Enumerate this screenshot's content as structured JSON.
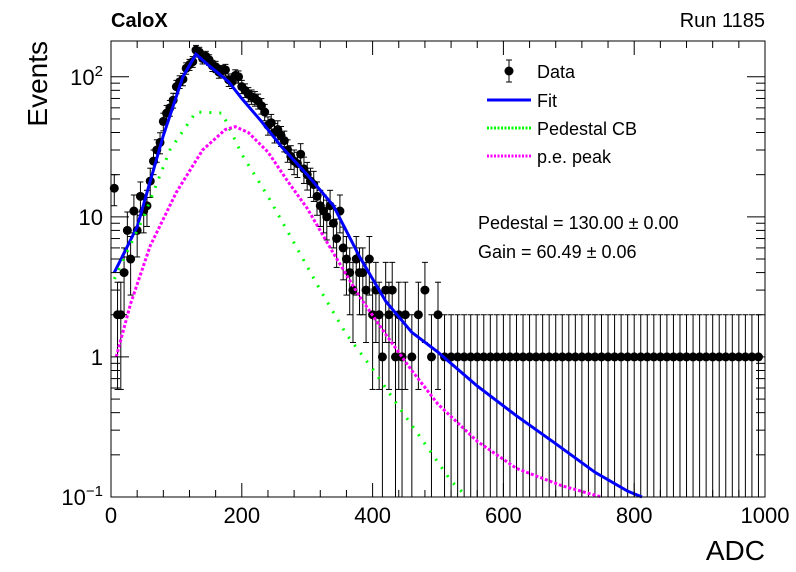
{
  "header": {
    "left_label": "CaloX",
    "right_label": "Run 1185"
  },
  "chart_data": {
    "type": "scatter",
    "xlabel": "ADC",
    "ylabel": "Events",
    "xlim": [
      0,
      1000
    ],
    "ylim": [
      0.1,
      180
    ],
    "yscale": "log",
    "x_ticks": [
      0,
      200,
      400,
      600,
      800,
      1000
    ],
    "y_ticks": [
      {
        "value": 0.1,
        "label": "10",
        "sup": "−1"
      },
      {
        "value": 1,
        "label": "1",
        "sup": ""
      },
      {
        "value": 10,
        "label": "10",
        "sup": ""
      },
      {
        "value": 100,
        "label": "10",
        "sup": "2"
      }
    ],
    "grid": false,
    "legend_position": "top-right",
    "legend": [
      {
        "label": "Data",
        "style": "marker"
      },
      {
        "label": "Fit",
        "style": "solid",
        "color": "#0000ff"
      },
      {
        "label": "Pedestal CB",
        "style": "dotted",
        "color": "#00ff00"
      },
      {
        "label": "p.e. peak",
        "style": "dotted",
        "color": "#ff00ff"
      }
    ],
    "annotations": [
      "Pedestal = 130.00 ± 0.00",
      "Gain = 60.49 ± 0.06"
    ],
    "series": [
      {
        "name": "Data",
        "points": [
          [
            5,
            16
          ],
          [
            10,
            2
          ],
          [
            15,
            2
          ],
          [
            20,
            4
          ],
          [
            25,
            8
          ],
          [
            30,
            5
          ],
          [
            35,
            11
          ],
          [
            40,
            8
          ],
          [
            45,
            14
          ],
          [
            50,
            11
          ],
          [
            55,
            12
          ],
          [
            60,
            18
          ],
          [
            65,
            25
          ],
          [
            70,
            30
          ],
          [
            75,
            34
          ],
          [
            80,
            48
          ],
          [
            85,
            55
          ],
          [
            90,
            60
          ],
          [
            95,
            68
          ],
          [
            100,
            85
          ],
          [
            105,
            92
          ],
          [
            110,
            96
          ],
          [
            115,
            115
          ],
          [
            120,
            122
          ],
          [
            125,
            128
          ],
          [
            130,
            155
          ],
          [
            135,
            150
          ],
          [
            140,
            135
          ],
          [
            145,
            140
          ],
          [
            150,
            132
          ],
          [
            155,
            120
          ],
          [
            160,
            118
          ],
          [
            165,
            108
          ],
          [
            170,
            110
          ],
          [
            175,
            112
          ],
          [
            180,
            95
          ],
          [
            185,
            92
          ],
          [
            190,
            102
          ],
          [
            195,
            100
          ],
          [
            200,
            85
          ],
          [
            205,
            80
          ],
          [
            210,
            75
          ],
          [
            215,
            72
          ],
          [
            220,
            70
          ],
          [
            225,
            67
          ],
          [
            230,
            62
          ],
          [
            235,
            56
          ],
          [
            240,
            45
          ],
          [
            245,
            47
          ],
          [
            250,
            40
          ],
          [
            255,
            42
          ],
          [
            260,
            38
          ],
          [
            265,
            35
          ],
          [
            270,
            30
          ],
          [
            275,
            27
          ],
          [
            280,
            25
          ],
          [
            285,
            24
          ],
          [
            290,
            28
          ],
          [
            295,
            22
          ],
          [
            300,
            20
          ],
          [
            305,
            18
          ],
          [
            310,
            17
          ],
          [
            315,
            14
          ],
          [
            320,
            12
          ],
          [
            325,
            11
          ],
          [
            330,
            10
          ],
          [
            335,
            12
          ],
          [
            340,
            9
          ],
          [
            345,
            7
          ],
          [
            350,
            11
          ],
          [
            355,
            6
          ],
          [
            360,
            5
          ],
          [
            365,
            4
          ],
          [
            370,
            3
          ],
          [
            375,
            5
          ],
          [
            380,
            4
          ],
          [
            385,
            4
          ],
          [
            390,
            3
          ],
          [
            395,
            5
          ],
          [
            400,
            2
          ],
          [
            405,
            3
          ],
          [
            410,
            2
          ],
          [
            415,
            1
          ],
          [
            420,
            3
          ],
          [
            425,
            2
          ],
          [
            430,
            3
          ],
          [
            435,
            1
          ],
          [
            440,
            2
          ],
          [
            445,
            1
          ],
          [
            450,
            2
          ],
          [
            460,
            1
          ],
          [
            470,
            2
          ],
          [
            480,
            3
          ],
          [
            490,
            1
          ],
          [
            500,
            2
          ],
          [
            510,
            1
          ],
          [
            520,
            1
          ],
          [
            530,
            1
          ],
          [
            540,
            1
          ],
          [
            550,
            1
          ],
          [
            560,
            1
          ],
          [
            570,
            1
          ],
          [
            580,
            1
          ],
          [
            590,
            1
          ],
          [
            600,
            1
          ],
          [
            610,
            1
          ],
          [
            620,
            1
          ],
          [
            630,
            1
          ],
          [
            640,
            1
          ],
          [
            650,
            1
          ],
          [
            660,
            1
          ],
          [
            670,
            1
          ],
          [
            680,
            1
          ],
          [
            690,
            1
          ],
          [
            700,
            1
          ],
          [
            710,
            1
          ],
          [
            720,
            1
          ],
          [
            730,
            1
          ],
          [
            740,
            1
          ],
          [
            750,
            1
          ],
          [
            760,
            1
          ],
          [
            770,
            1
          ],
          [
            780,
            1
          ],
          [
            790,
            1
          ],
          [
            800,
            1
          ],
          [
            810,
            1
          ],
          [
            820,
            1
          ],
          [
            830,
            1
          ],
          [
            840,
            1
          ],
          [
            850,
            1
          ],
          [
            860,
            1
          ],
          [
            870,
            1
          ],
          [
            880,
            1
          ],
          [
            890,
            1
          ],
          [
            900,
            1
          ],
          [
            910,
            1
          ],
          [
            920,
            1
          ],
          [
            930,
            1
          ],
          [
            940,
            1
          ],
          [
            950,
            1
          ],
          [
            960,
            1
          ],
          [
            970,
            1
          ],
          [
            980,
            1
          ],
          [
            990,
            1
          ]
        ]
      },
      {
        "name": "Fit",
        "points": [
          [
            5,
            4
          ],
          [
            40,
            8.5
          ],
          [
            80,
            38
          ],
          [
            110,
            100
          ],
          [
            130,
            145
          ],
          [
            150,
            120
          ],
          [
            180,
            92
          ],
          [
            200,
            70
          ],
          [
            230,
            48
          ],
          [
            260,
            32
          ],
          [
            300,
            20
          ],
          [
            340,
            12
          ],
          [
            380,
            5.2
          ],
          [
            420,
            2.5
          ],
          [
            460,
            1.5
          ],
          [
            500,
            1.08
          ],
          [
            560,
            0.62
          ],
          [
            620,
            0.38
          ],
          [
            680,
            0.24
          ],
          [
            740,
            0.15
          ],
          [
            790,
            0.11
          ],
          [
            812,
            0.1
          ]
        ]
      },
      {
        "name": "Pedestal CB",
        "points": [
          [
            5,
            3.6
          ],
          [
            50,
            10
          ],
          [
            90,
            30
          ],
          [
            130,
            56
          ],
          [
            170,
            55
          ],
          [
            200,
            28
          ],
          [
            240,
            14
          ],
          [
            280,
            6.5
          ],
          [
            320,
            3
          ],
          [
            360,
            1.45
          ],
          [
            400,
            0.82
          ],
          [
            440,
            0.44
          ],
          [
            480,
            0.24
          ],
          [
            520,
            0.13
          ],
          [
            545,
            0.1
          ]
        ]
      },
      {
        "name": "p.e. peak",
        "points": [
          [
            8,
            1
          ],
          [
            30,
            2.4
          ],
          [
            60,
            6.2
          ],
          [
            100,
            15
          ],
          [
            140,
            30
          ],
          [
            175,
            42
          ],
          [
            190,
            44
          ],
          [
            210,
            40
          ],
          [
            240,
            29
          ],
          [
            270,
            18
          ],
          [
            300,
            11.5
          ],
          [
            340,
            5.5
          ],
          [
            380,
            2.7
          ],
          [
            420,
            1.45
          ],
          [
            460,
            0.8
          ],
          [
            500,
            0.46
          ],
          [
            560,
            0.25
          ],
          [
            620,
            0.16
          ],
          [
            690,
            0.12
          ],
          [
            750,
            0.1
          ]
        ]
      }
    ]
  }
}
